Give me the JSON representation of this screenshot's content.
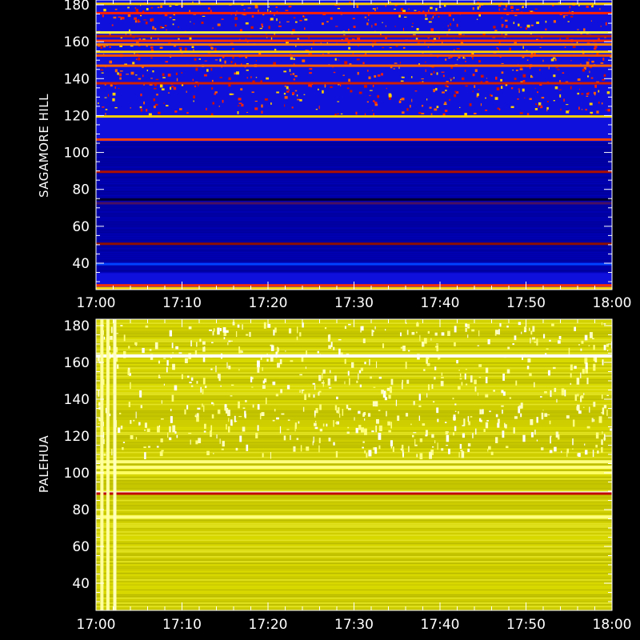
{
  "chart_data": [
    {
      "type": "heatmap",
      "station": "SAGAMORE HILL",
      "ylabel": "SAGAMORE HILL",
      "xlabel": "",
      "x_ticks": [
        "17:00",
        "17:10",
        "17:20",
        "17:30",
        "17:40",
        "17:50",
        "18:00"
      ],
      "xlim": [
        "17:00",
        "18:00"
      ],
      "y_ticks": [
        40,
        60,
        80,
        100,
        120,
        140,
        160,
        180
      ],
      "ylim": [
        25,
        182
      ],
      "background_color": "#1010dc",
      "colormap": [
        "#000066",
        "#0000cc",
        "#2020ff",
        "#d00000",
        "#ff6000",
        "#ffff40",
        "#ffffff"
      ],
      "bands": [
        {
          "freq": 180.5,
          "color": "#ffd000"
        },
        {
          "freq": 175.5,
          "color": "#ff2000"
        },
        {
          "freq": 165.0,
          "color": "#ffff40"
        },
        {
          "freq": 163.0,
          "color": "#c02000"
        },
        {
          "freq": 160.5,
          "color": "#ff3000"
        },
        {
          "freq": 158.5,
          "color": "#ff8000"
        },
        {
          "freq": 154.5,
          "color": "#ffd000"
        },
        {
          "freq": 152.5,
          "color": "#ff5000"
        },
        {
          "freq": 147.0,
          "color": "#ff6000"
        },
        {
          "freq": 137.5,
          "color": "#d02000"
        },
        {
          "freq": 119.5,
          "color": "#ffd000"
        },
        {
          "freq": 107.0,
          "color": "#ff4000"
        },
        {
          "freq": 89.5,
          "color": "#b01000"
        },
        {
          "freq": 74.5,
          "color": "#000033"
        },
        {
          "freq": 72.5,
          "color": "#4a1060"
        },
        {
          "freq": 50.5,
          "color": "#901000"
        },
        {
          "freq": 39.5,
          "color": "#0040ff"
        },
        {
          "freq": 28.0,
          "color": "#ff3000"
        },
        {
          "freq": 26.5,
          "color": "#ffd000"
        }
      ],
      "dark_region": {
        "from": 35,
        "to": 106,
        "color": "#0000a8"
      },
      "speckle_region": {
        "from": 121,
        "to": 182
      }
    },
    {
      "type": "heatmap",
      "station": "PALEHUA",
      "ylabel": "PALEHUA",
      "xlabel": "",
      "x_ticks": [
        "17:00",
        "17:10",
        "17:20",
        "17:30",
        "17:40",
        "17:50",
        "18:00"
      ],
      "xlim": [
        "17:00",
        "18:00"
      ],
      "y_ticks": [
        40,
        60,
        80,
        100,
        120,
        140,
        160,
        180
      ],
      "ylim": [
        25,
        182
      ],
      "background_color": "#d2d200",
      "colormap": [
        "#a0a000",
        "#d2d200",
        "#ffff40",
        "#ffffc0",
        "#ffffff",
        "#c00000"
      ],
      "bands": [
        {
          "freq": 163.5,
          "color": "#ffffff"
        },
        {
          "freq": 106.0,
          "color": "#ffff80"
        },
        {
          "freq": 103.0,
          "color": "#ffff80"
        },
        {
          "freq": 100.0,
          "color": "#ffff60"
        },
        {
          "freq": 89.0,
          "color": "#ffffff"
        },
        {
          "freq": 88.7,
          "color": "#c00000"
        },
        {
          "freq": 76.0,
          "color": "#ffff80"
        }
      ],
      "vertical_streaks": [
        {
          "minute": 0.5,
          "color": "#ffffa0"
        },
        {
          "minute": 1.2,
          "color": "#ffffa0"
        },
        {
          "minute": 2.0,
          "color": "#ffffc0"
        }
      ],
      "speckle_region": {
        "from": 110,
        "to": 182
      }
    }
  ]
}
